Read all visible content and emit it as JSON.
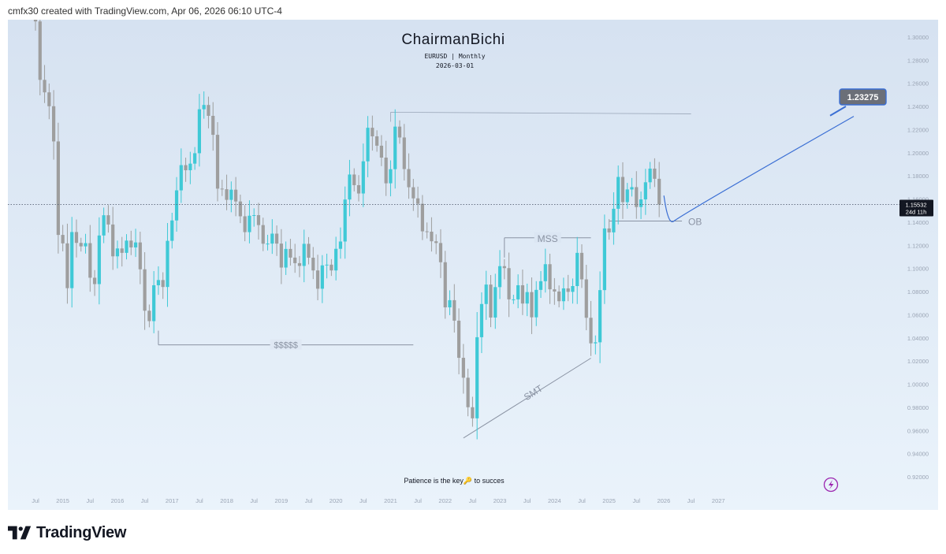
{
  "header": {
    "created_line": "cmfx30 created with TradingView.com, Apr 06, 2026 06:10 UTC-4"
  },
  "branding": {
    "logo_icon": "tradingview-logo-icon",
    "logo_text": "TradingView",
    "alert_icon": "lightning-bolt-icon"
  },
  "colors": {
    "bg_top": "#d6e2f1",
    "bg_bottom": "#eaf3fb",
    "bull": "#3fc9d6",
    "bear": "#9e9e9e",
    "annotation": "#8a93a3",
    "target": "#3b6fd4",
    "label_bg": "#6b6f78"
  },
  "chart_data": {
    "type": "candlestick",
    "title": "ChairmanBichi",
    "subtitle": "EURUSD | Monthly",
    "date_line": "2026-03-01",
    "footer_note": "Patience is the key🔑 to succes",
    "ylim": [
      0.905,
      1.315
    ],
    "y_ticks": [
      {
        "v": 1.3,
        "label": "1.30000"
      },
      {
        "v": 1.28,
        "label": "1.28000"
      },
      {
        "v": 1.26,
        "label": "1.26000"
      },
      {
        "v": 1.24,
        "label": "1.24000"
      },
      {
        "v": 1.22,
        "label": "1.22000"
      },
      {
        "v": 1.2,
        "label": "1.20000"
      },
      {
        "v": 1.18,
        "label": "1.18000"
      },
      {
        "v": 1.16,
        "label": "1.16000"
      },
      {
        "v": 1.14,
        "label": "1.14000"
      },
      {
        "v": 1.12,
        "label": "1.12000"
      },
      {
        "v": 1.1,
        "label": "1.10000"
      },
      {
        "v": 1.08,
        "label": "1.08000"
      },
      {
        "v": 1.06,
        "label": "1.06000"
      },
      {
        "v": 1.04,
        "label": "1.04000"
      },
      {
        "v": 1.02,
        "label": "1.02000"
      },
      {
        "v": 1.0,
        "label": "1.00000"
      },
      {
        "v": 0.98,
        "label": "0.98000"
      },
      {
        "v": 0.96,
        "label": "0.96000"
      },
      {
        "v": 0.94,
        "label": "0.94000"
      },
      {
        "v": 0.92,
        "label": "0.92000"
      }
    ],
    "x_ticks": [
      {
        "label": "Jul",
        "i": 0
      },
      {
        "label": "2015",
        "i": 6
      },
      {
        "label": "Jul",
        "i": 12
      },
      {
        "label": "2016",
        "i": 18
      },
      {
        "label": "Jul",
        "i": 24
      },
      {
        "label": "2017",
        "i": 30
      },
      {
        "label": "Jul",
        "i": 36
      },
      {
        "label": "2018",
        "i": 42
      },
      {
        "label": "Jul",
        "i": 48
      },
      {
        "label": "2019",
        "i": 54
      },
      {
        "label": "Jul",
        "i": 60
      },
      {
        "label": "2020",
        "i": 66
      },
      {
        "label": "Jul",
        "i": 72
      },
      {
        "label": "2021",
        "i": 78
      },
      {
        "label": "Jul",
        "i": 84
      },
      {
        "label": "2022",
        "i": 90
      },
      {
        "label": "Jul",
        "i": 96
      },
      {
        "label": "2023",
        "i": 102
      },
      {
        "label": "Jul",
        "i": 108
      },
      {
        "label": "2024",
        "i": 114
      },
      {
        "label": "Jul",
        "i": 120
      },
      {
        "label": "2025",
        "i": 126
      },
      {
        "label": "Jul",
        "i": 132
      },
      {
        "label": "2026",
        "i": 138
      },
      {
        "label": "Jul",
        "i": 144
      },
      {
        "label": "2027",
        "i": 150
      }
    ],
    "current_price": {
      "value": 1.15532,
      "label": "1.15532",
      "countdown": "24d 11h"
    },
    "closes": [
      1.3135,
      1.263,
      1.2522,
      1.2402,
      1.2098,
      1.129,
      1.1217,
      1.083,
      1.1315,
      1.1221,
      1.1191,
      1.1219,
      1.092,
      1.0865,
      1.1285,
      1.146,
      1.138,
      1.1105,
      1.1173,
      1.1135,
      1.1241,
      1.1182,
      1.1225,
      1.0993,
      1.0635,
      1.0545,
      1.0855,
      1.09,
      1.084,
      1.1239,
      1.1415,
      1.1675,
      1.1893,
      1.1849,
      1.1906,
      1.1996,
      1.2376,
      1.2413,
      1.2319,
      1.2155,
      1.169,
      1.1685,
      1.1593,
      1.1681,
      1.1579,
      1.1451,
      1.1314,
      1.1456,
      1.1461,
      1.1375,
      1.1214,
      1.1215,
      1.1301,
      1.1215,
      1.1008,
      1.1169,
      1.1094,
      1.1046,
      1.1022,
      1.1213,
      1.1093,
      1.0983,
      1.0825,
      1.1027,
      1.1033,
      1.0983,
      1.117,
      1.1233,
      1.1596,
      1.1812,
      1.172,
      1.1648,
      1.1926,
      1.2216,
      1.2142,
      1.2061,
      1.1958,
      1.1736,
      1.1858,
      1.2226,
      1.2132,
      1.1859,
      1.1702,
      1.1606,
      1.1559,
      1.1321,
      1.1318,
      1.1235,
      1.122,
      1.1054,
      1.0664,
      1.0726,
      1.0549,
      1.0228,
      1.0056,
      0.9801,
      0.9705,
      1.0406,
      1.0693,
      1.0861,
      1.0576,
      1.0839,
      1.102,
      1.1003,
      1.0733,
      1.0733,
      1.0855,
      1.0697,
      1.0796,
      1.0578,
      1.0815,
      1.089,
      1.1037,
      1.082,
      1.0801,
      1.0717,
      1.0828,
      1.0798,
      1.0848,
      1.1135,
      1.0906,
      1.0574,
      1.0353,
      1.0362,
      1.0813,
      1.1346,
      1.1312,
      1.1516,
      1.1791,
      1.1573,
      1.1683,
      1.1703,
      1.1531,
      1.1597,
      1.1745,
      1.1863,
      1.1775,
      1.1553
    ],
    "annotations": [
      {
        "type": "hline",
        "label": "$$$$$",
        "y": 1.034,
        "from_i": 27,
        "to_i": 83
      },
      {
        "type": "hline",
        "label": "MSS",
        "y": 1.1265,
        "from_i": 103,
        "to_i": 122
      },
      {
        "type": "trendline",
        "label": "SMT",
        "from": {
          "i": 94,
          "y": 0.9535
        },
        "to": {
          "i": 122,
          "y": 1.0225
        }
      },
      {
        "type": "hline",
        "label": "OB",
        "y": 1.141,
        "from_i": 126,
        "to_i": 142
      },
      {
        "type": "hline",
        "label": "",
        "y": 1.235,
        "from_i": 78,
        "to_i": 144
      },
      {
        "type": "target",
        "label": "1.23275",
        "y": 1.23275
      }
    ]
  }
}
